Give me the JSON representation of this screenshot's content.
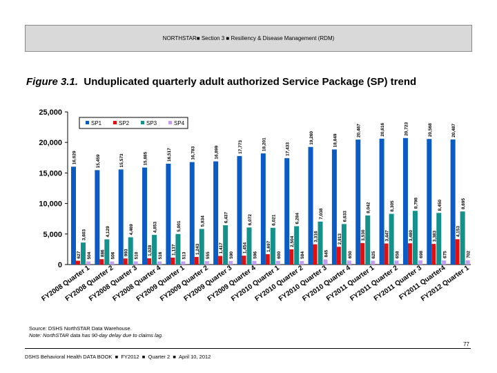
{
  "header": {
    "text": "NORTHSTAR■  Section 3  ■  Resiliency & Disease Management (RDM)"
  },
  "figure": {
    "label": "Figure 3.1.",
    "title": "Unduplicated quarterly adult authorized Service Package (SP) trend"
  },
  "chart_data": {
    "type": "bar",
    "ylim": [
      0,
      25000
    ],
    "yticks": [
      "0",
      "5,000",
      "10,000",
      "15,000",
      "20,000",
      "25,000"
    ],
    "categories": [
      "FY2008 Quarter 1",
      "FY2008 Quarter 2",
      "FY2008 Quarter 3",
      "FY2008 Quarter 4",
      "FY2009 Quarter 1",
      "FY2009 Quarter 2",
      "FY2009 Quarter 3",
      "FY2009 Quarter 4",
      "FY2010 Quarter 1",
      "FY2010 Quarter 2",
      "FY2010 Quarter 3",
      "FY2010 Quarter 4",
      "FY2011 Quarter 1",
      "FY2011 Quarter 2",
      "FY2011 Quarter 3",
      "FY2011 Quarter4",
      "FY2012 Quarter 1"
    ],
    "legend_position": "top-left",
    "series": [
      {
        "name": "SP1",
        "color": "#0a5bc4",
        "values": [
          16029,
          15459,
          15573,
          15885,
          16517,
          16783,
          16899,
          17773,
          18201,
          17433,
          19260,
          18849,
          20467,
          20616,
          20723,
          20568,
          20487
        ]
      },
      {
        "name": "SP2",
        "color": "#e01010",
        "values": [
          627,
          886,
          993,
          1028,
          1137,
          1243,
          1417,
          1454,
          1697,
          2504,
          3316,
          2913,
          3530,
          3447,
          3480,
          3383,
          4153
        ]
      },
      {
        "name": "SP3",
        "color": "#13918a",
        "values": [
          3603,
          4129,
          4469,
          4853,
          5001,
          5834,
          6437,
          6072,
          6021,
          6284,
          7038,
          6633,
          8042,
          8305,
          8798,
          8450,
          8695
        ]
      },
      {
        "name": "SP4",
        "color": "#c39ef0",
        "values": [
          504,
          506,
          510,
          516,
          513,
          555,
          590,
          596,
          600,
          584,
          845,
          650,
          625,
          658,
          698,
          675,
          702
        ]
      }
    ]
  },
  "source": "Source: DSHS NorthSTAR Data Warehouse.",
  "note": "Note: NorthSTAR data has 90-day delay due to claims lag.",
  "page_number": "77",
  "footer": {
    "org": "DSHS Behavioral Health DATA BOOK",
    "year": "FY2012",
    "quarter": "Quarter 2",
    "date": "April 10, 2012"
  }
}
